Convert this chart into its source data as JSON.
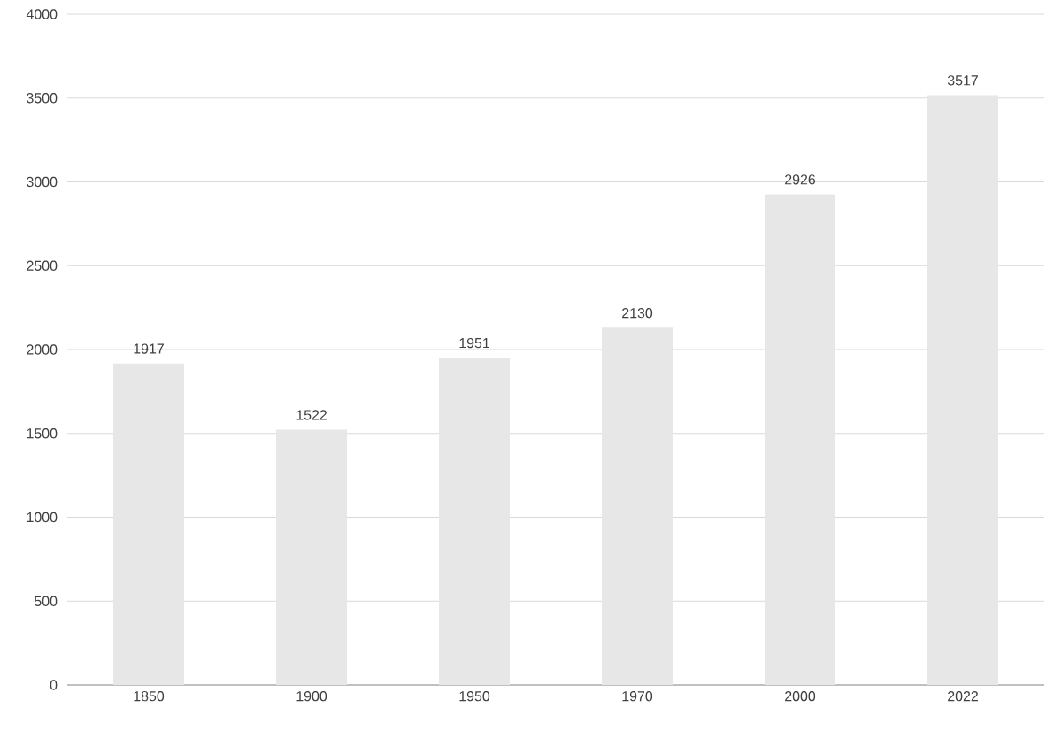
{
  "chart_data": {
    "type": "bar",
    "categories": [
      "1850",
      "1900",
      "1950",
      "1970",
      "2000",
      "2022"
    ],
    "values": [
      1917,
      1522,
      1951,
      2130,
      2926,
      3517
    ],
    "color": "#e7e7e7",
    "ylim": [
      0,
      4000
    ],
    "yticks": [
      0,
      500,
      1000,
      1500,
      2000,
      2500,
      3000,
      3500,
      4000
    ],
    "grid": "y",
    "data_labels": true
  }
}
